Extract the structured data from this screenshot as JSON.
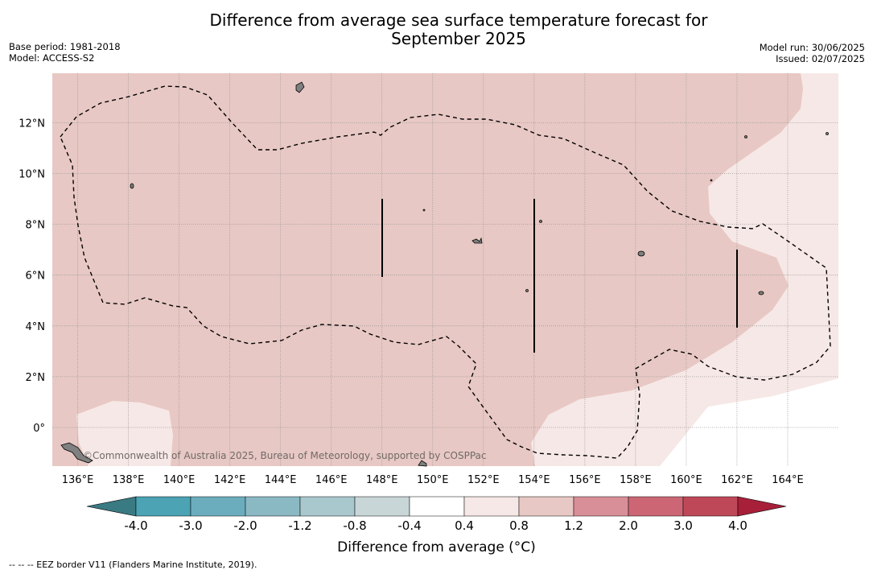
{
  "title_line1": "Difference from average sea surface temperature forecast for",
  "title_line2": "September 2025",
  "base_period": "Base period: 1981-2018",
  "model": "Model: ACCESS-S2",
  "model_run": "Model run: 30/06/2025",
  "issued": "Issued: 02/07/2025",
  "copyright": "©Commonwealth of Australia 2025, Bureau of Meteorology, supported by COSPPac",
  "footnote": "--  --  -- EEZ border V11 (Flanders Marine Institute, 2019).",
  "lon_labels": [
    "136°E",
    "138°E",
    "140°E",
    "142°E",
    "144°E",
    "146°E",
    "148°E",
    "150°E",
    "152°E",
    "154°E",
    "156°E",
    "158°E",
    "160°E",
    "162°E",
    "164°E"
  ],
  "lat_labels": [
    "12°N",
    "10°N",
    "8°N",
    "6°N",
    "4°N",
    "2°N",
    "0°"
  ],
  "colorbar": {
    "label": "Difference from average (°C)",
    "ticks": [
      "-4.0",
      "-3.0",
      "-2.0",
      "-1.2",
      "-0.8",
      "-0.4",
      "0.4",
      "0.8",
      "1.2",
      "2.0",
      "3.0",
      "4.0"
    ],
    "colors": [
      "#3a7a82",
      "#4ba3b4",
      "#6cadbd",
      "#8ab9c4",
      "#a9c8cd",
      "#c8d6d8",
      "#ffffff",
      "#f6e8e6",
      "#e8c8c4",
      "#d98f98",
      "#cc6674",
      "#bf4858",
      "#a81f3a"
    ]
  },
  "map_colors": {
    "band_0_8_1_2": "#e8c8c4",
    "band_0_4_0_8": "#f6e8e6",
    "land": "#808080"
  }
}
